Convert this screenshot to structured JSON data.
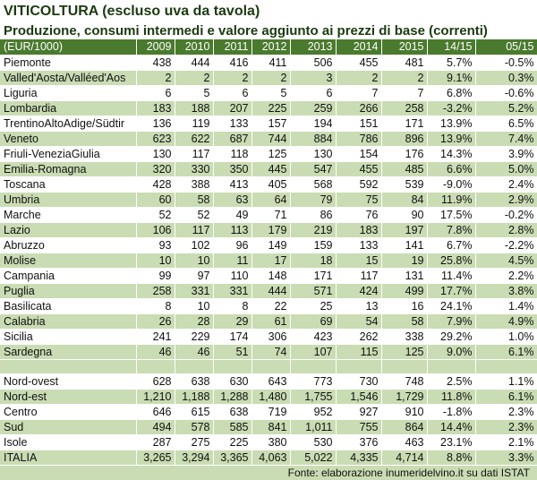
{
  "title": "VITICOLTURA (escluso uva da tavola)",
  "subtitle": "Produzione, consumi intermedi e valore aggiunto ai prezzi di base (correnti)",
  "columns": [
    "(EUR/1000)",
    "2009",
    "2010",
    "2011",
    "2012",
    "2013",
    "2014",
    "2015",
    "14/15",
    "05/15"
  ],
  "rows": [
    [
      "Piemonte",
      "438",
      "444",
      "416",
      "411",
      "506",
      "455",
      "481",
      "5.7%",
      "-0.5%"
    ],
    [
      "Valled'Aosta/Valléed'Aos",
      "2",
      "2",
      "2",
      "2",
      "3",
      "2",
      "2",
      "9.1%",
      "0.3%"
    ],
    [
      "Liguria",
      "6",
      "5",
      "6",
      "5",
      "6",
      "7",
      "7",
      "6.8%",
      "-0.6%"
    ],
    [
      "Lombardia",
      "183",
      "188",
      "207",
      "225",
      "259",
      "266",
      "258",
      "-3.2%",
      "5.2%"
    ],
    [
      "TrentinoAltoAdige/Südtir",
      "136",
      "119",
      "133",
      "157",
      "194",
      "151",
      "171",
      "13.9%",
      "6.5%"
    ],
    [
      "Veneto",
      "623",
      "622",
      "687",
      "744",
      "884",
      "786",
      "896",
      "13.9%",
      "7.4%"
    ],
    [
      "Friuli-VeneziaGiulia",
      "130",
      "117",
      "118",
      "125",
      "130",
      "154",
      "176",
      "14.3%",
      "3.9%"
    ],
    [
      "Emilia-Romagna",
      "320",
      "330",
      "350",
      "445",
      "547",
      "455",
      "485",
      "6.6%",
      "5.0%"
    ],
    [
      "Toscana",
      "428",
      "388",
      "413",
      "405",
      "568",
      "592",
      "539",
      "-9.0%",
      "2.4%"
    ],
    [
      "Umbria",
      "60",
      "58",
      "63",
      "64",
      "79",
      "75",
      "84",
      "11.9%",
      "2.9%"
    ],
    [
      "Marche",
      "52",
      "52",
      "49",
      "71",
      "86",
      "76",
      "90",
      "17.5%",
      "-0.2%"
    ],
    [
      "Lazio",
      "106",
      "117",
      "113",
      "179",
      "219",
      "183",
      "197",
      "7.8%",
      "2.8%"
    ],
    [
      "Abruzzo",
      "93",
      "102",
      "96",
      "149",
      "159",
      "133",
      "141",
      "6.7%",
      "-2.2%"
    ],
    [
      "Molise",
      "10",
      "10",
      "11",
      "17",
      "18",
      "15",
      "19",
      "25.8%",
      "4.5%"
    ],
    [
      "Campania",
      "99",
      "97",
      "110",
      "148",
      "171",
      "117",
      "131",
      "11.4%",
      "2.2%"
    ],
    [
      "Puglia",
      "258",
      "331",
      "331",
      "444",
      "571",
      "424",
      "499",
      "17.7%",
      "3.8%"
    ],
    [
      "Basilicata",
      "8",
      "10",
      "8",
      "22",
      "25",
      "13",
      "16",
      "24.1%",
      "1.4%"
    ],
    [
      "Calabria",
      "26",
      "28",
      "29",
      "61",
      "69",
      "54",
      "58",
      "7.9%",
      "4.9%"
    ],
    [
      "Sicilia",
      "241",
      "229",
      "174",
      "306",
      "423",
      "262",
      "338",
      "29.2%",
      "1.0%"
    ],
    [
      "Sardegna",
      "46",
      "46",
      "51",
      "74",
      "107",
      "115",
      "125",
      "9.0%",
      "6.1%"
    ]
  ],
  "aggregates": [
    [
      "Nord-ovest",
      "628",
      "638",
      "630",
      "643",
      "773",
      "730",
      "748",
      "2.5%",
      "1.1%"
    ],
    [
      "Nord-est",
      "1,210",
      "1,188",
      "1,288",
      "1,480",
      "1,755",
      "1,546",
      "1,729",
      "11.8%",
      "6.1%"
    ],
    [
      "Centro",
      "646",
      "615",
      "638",
      "719",
      "952",
      "927",
      "910",
      "-1.8%",
      "2.3%"
    ],
    [
      "Sud",
      "494",
      "578",
      "585",
      "841",
      "1,011",
      "755",
      "864",
      "14.4%",
      "2.3%"
    ],
    [
      "Isole",
      "287",
      "275",
      "225",
      "380",
      "530",
      "376",
      "463",
      "23.1%",
      "2.1%"
    ],
    [
      "ITALIA",
      "3,265",
      "3,294",
      "3,365",
      "4,063",
      "5,022",
      "4,335",
      "4,714",
      "8.8%",
      "3.3%"
    ]
  ],
  "footer": "Fonte: elaborazione inumeridelvino.it su dati ISTAT",
  "colors": {
    "header_bg": "#4a7a2e",
    "band_bg": "#c9dcb3",
    "title_color": "#1b3a10"
  }
}
